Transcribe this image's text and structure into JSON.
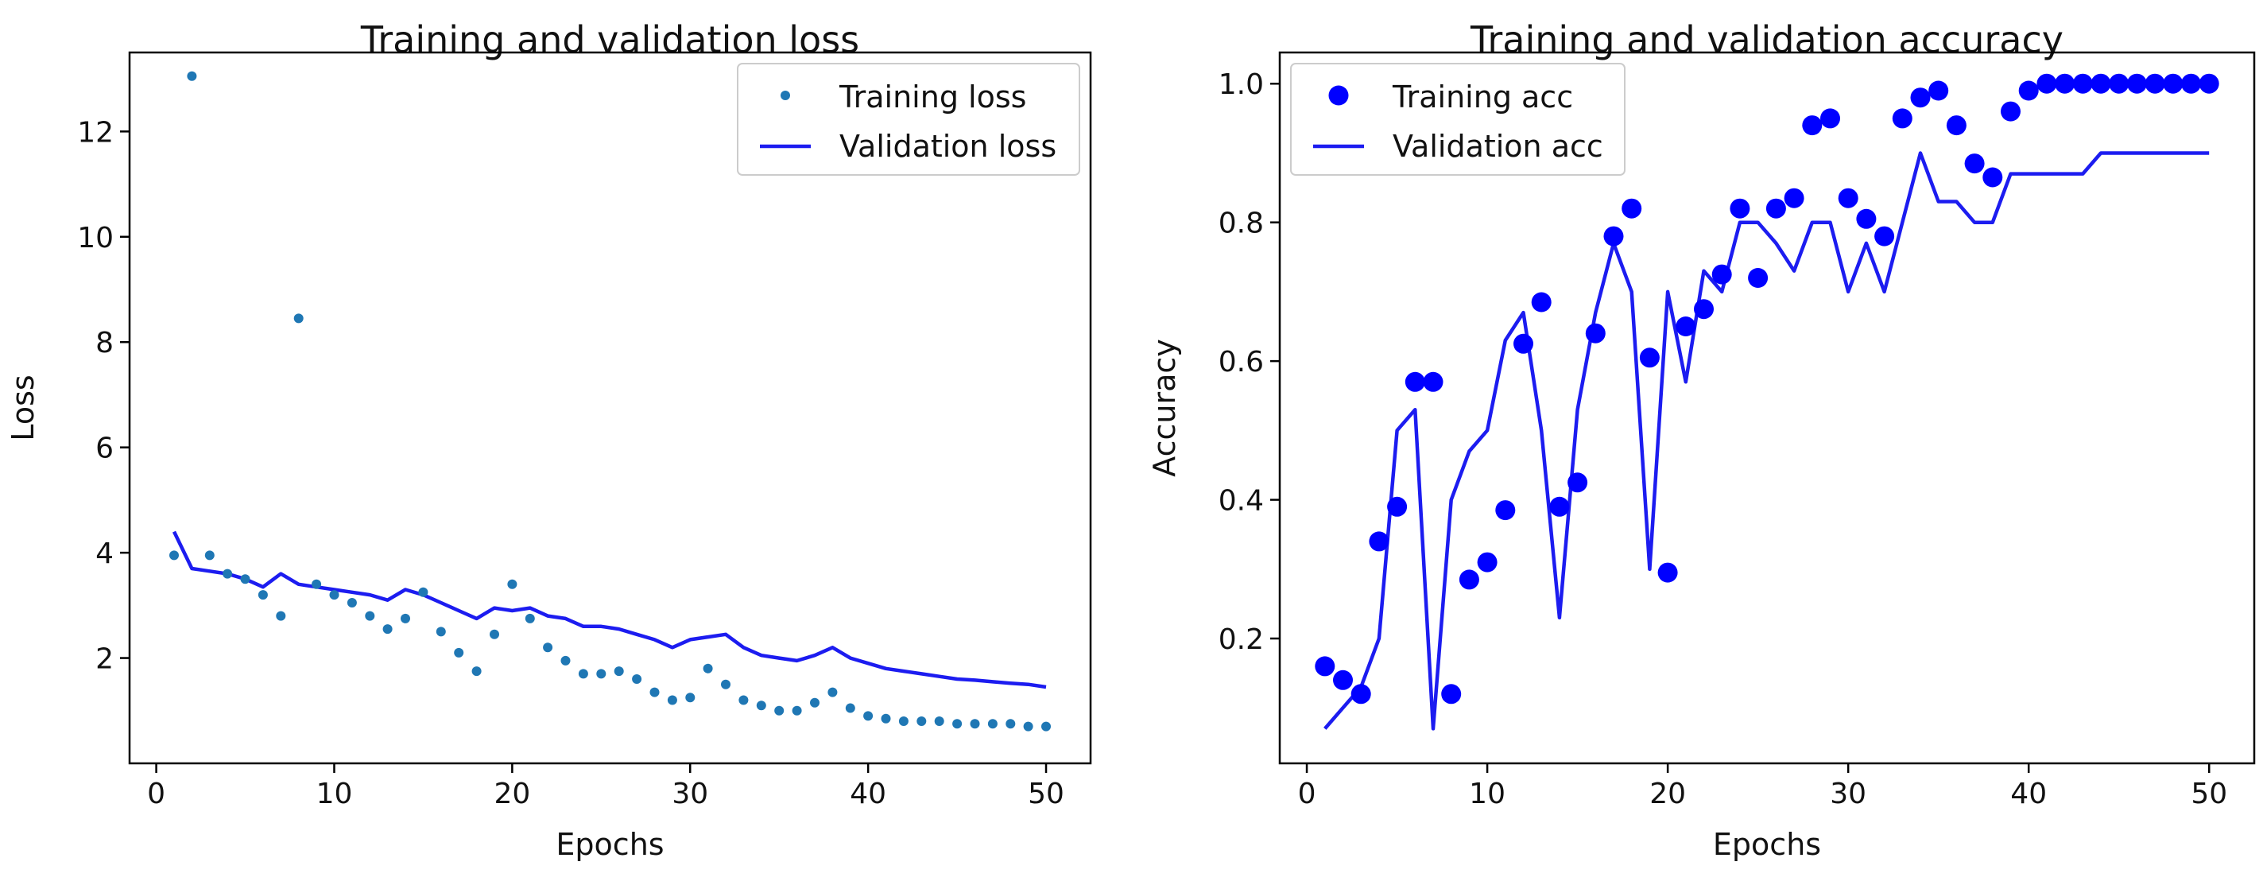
{
  "figure": {
    "background": "#ffffff"
  },
  "chart_data": [
    {
      "type": "scatter",
      "title": "Training and validation loss",
      "xlabel": "Epochs",
      "ylabel": "Loss",
      "xlim": [
        -1.5,
        52.5
      ],
      "ylim": [
        0.0,
        13.5
      ],
      "xticks": [
        0,
        10,
        20,
        30,
        40,
        50
      ],
      "yticks": [
        2,
        4,
        6,
        8,
        10,
        12
      ],
      "legend": "top-right",
      "grid": false,
      "series": [
        {
          "name": "Training loss",
          "style": "points",
          "color": "#1f77b4",
          "x": [
            1,
            2,
            3,
            4,
            5,
            6,
            7,
            8,
            9,
            10,
            11,
            12,
            13,
            14,
            15,
            16,
            17,
            18,
            19,
            20,
            21,
            22,
            23,
            24,
            25,
            26,
            27,
            28,
            29,
            30,
            31,
            32,
            33,
            34,
            35,
            36,
            37,
            38,
            39,
            40,
            41,
            42,
            43,
            44,
            45,
            46,
            47,
            48,
            49,
            50
          ],
          "y": [
            3.95,
            13.05,
            3.95,
            3.6,
            3.5,
            3.2,
            2.8,
            8.45,
            3.4,
            3.2,
            3.05,
            2.8,
            2.55,
            2.75,
            3.25,
            2.5,
            2.1,
            1.75,
            2.45,
            3.4,
            2.75,
            2.2,
            1.95,
            1.7,
            1.7,
            1.75,
            1.6,
            1.35,
            1.2,
            1.25,
            1.8,
            1.5,
            1.2,
            1.1,
            1.0,
            1.0,
            1.15,
            1.35,
            1.05,
            0.9,
            0.85,
            0.8,
            0.8,
            0.8,
            0.75,
            0.75,
            0.75,
            0.75,
            0.7,
            0.7
          ]
        },
        {
          "name": "Validation loss",
          "style": "line",
          "color": "#1c1cf0",
          "x": [
            1,
            2,
            3,
            4,
            5,
            6,
            7,
            8,
            9,
            10,
            11,
            12,
            13,
            14,
            15,
            16,
            17,
            18,
            19,
            20,
            21,
            22,
            23,
            24,
            25,
            26,
            27,
            28,
            29,
            30,
            31,
            32,
            33,
            34,
            35,
            36,
            37,
            38,
            39,
            40,
            41,
            42,
            43,
            44,
            45,
            46,
            47,
            48,
            49,
            50
          ],
          "y": [
            4.4,
            3.7,
            3.65,
            3.6,
            3.5,
            3.35,
            3.6,
            3.4,
            3.35,
            3.3,
            3.25,
            3.2,
            3.1,
            3.3,
            3.2,
            3.05,
            2.9,
            2.75,
            2.95,
            2.9,
            2.95,
            2.8,
            2.75,
            2.6,
            2.6,
            2.55,
            2.45,
            2.35,
            2.2,
            2.35,
            2.4,
            2.45,
            2.2,
            2.05,
            2.0,
            1.95,
            2.05,
            2.2,
            2.0,
            1.9,
            1.8,
            1.75,
            1.7,
            1.65,
            1.6,
            1.58,
            1.55,
            1.52,
            1.5,
            1.45
          ]
        }
      ]
    },
    {
      "type": "scatter",
      "title": "Training and validation accuracy",
      "xlabel": "Epochs",
      "ylabel": "Accuracy",
      "xlim": [
        -1.5,
        52.5
      ],
      "ylim": [
        0.02,
        1.045
      ],
      "xticks": [
        0,
        10,
        20,
        30,
        40,
        50
      ],
      "yticks": [
        0.2,
        0.4,
        0.6,
        0.8,
        1.0
      ],
      "ytick_labels": [
        "0.2",
        "0.4",
        "0.6",
        "0.8",
        "1.0"
      ],
      "legend": "top-left",
      "grid": false,
      "series": [
        {
          "name": "Training acc",
          "style": "points",
          "color": "#0000ff",
          "x": [
            1,
            2,
            3,
            4,
            5,
            6,
            7,
            8,
            9,
            10,
            11,
            12,
            13,
            14,
            15,
            16,
            17,
            18,
            19,
            20,
            21,
            22,
            23,
            24,
            25,
            26,
            27,
            28,
            29,
            30,
            31,
            32,
            33,
            34,
            35,
            36,
            37,
            38,
            39,
            40,
            41,
            42,
            43,
            44,
            45,
            46,
            47,
            48,
            49,
            50
          ],
          "y": [
            0.16,
            0.14,
            0.12,
            0.34,
            0.39,
            0.57,
            0.57,
            0.12,
            0.285,
            0.31,
            0.385,
            0.625,
            0.685,
            0.39,
            0.425,
            0.64,
            0.78,
            0.82,
            0.605,
            0.295,
            0.65,
            0.675,
            0.725,
            0.82,
            0.72,
            0.82,
            0.835,
            0.94,
            0.95,
            0.835,
            0.805,
            0.78,
            0.95,
            0.98,
            0.99,
            0.94,
            0.885,
            0.865,
            0.96,
            0.99,
            1.0,
            1.0,
            1.0,
            1.0,
            1.0,
            1.0,
            1.0,
            1.0,
            1.0,
            1.0
          ]
        },
        {
          "name": "Validation acc",
          "style": "line",
          "color": "#1c1cf0",
          "x": [
            1,
            2,
            3,
            4,
            5,
            6,
            7,
            8,
            9,
            10,
            11,
            12,
            13,
            14,
            15,
            16,
            17,
            18,
            19,
            20,
            21,
            22,
            23,
            24,
            25,
            26,
            27,
            28,
            29,
            30,
            31,
            32,
            33,
            34,
            35,
            36,
            37,
            38,
            39,
            40,
            41,
            42,
            43,
            44,
            45,
            46,
            47,
            48,
            49,
            50
          ],
          "y": [
            0.07,
            0.1,
            0.13,
            0.2,
            0.5,
            0.53,
            0.07,
            0.4,
            0.47,
            0.5,
            0.63,
            0.67,
            0.5,
            0.23,
            0.53,
            0.67,
            0.77,
            0.7,
            0.3,
            0.7,
            0.57,
            0.73,
            0.7,
            0.8,
            0.8,
            0.77,
            0.73,
            0.8,
            0.8,
            0.7,
            0.77,
            0.7,
            0.8,
            0.9,
            0.83,
            0.83,
            0.8,
            0.8,
            0.87,
            0.87,
            0.87,
            0.87,
            0.87,
            0.9,
            0.9,
            0.9,
            0.9,
            0.9,
            0.9,
            0.9
          ]
        }
      ]
    }
  ]
}
